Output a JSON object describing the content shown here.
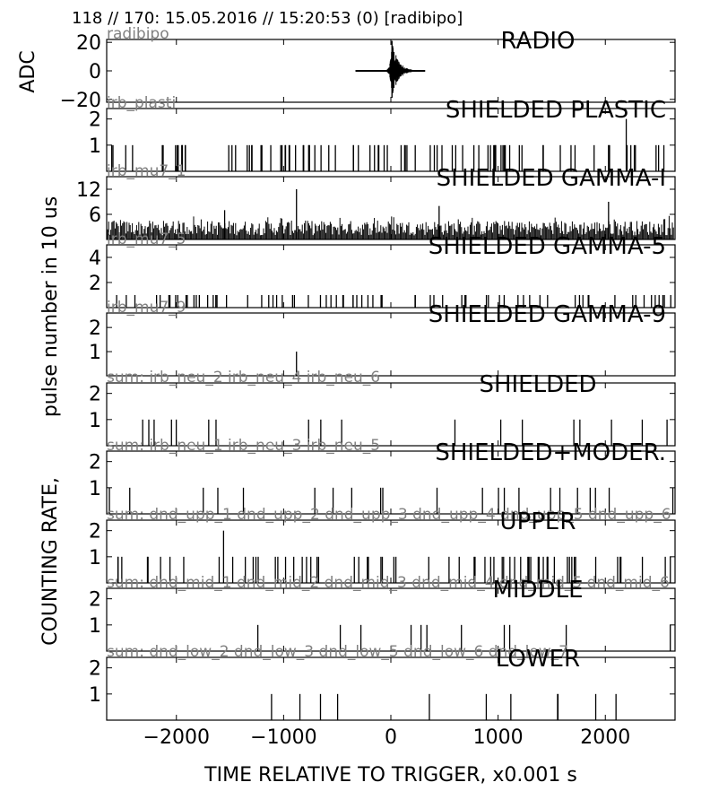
{
  "header": "118 // 170:   15.05.2016 // 15:20:53 (0)  [radibipo]",
  "chart_data": {
    "type": "bar",
    "xlabel": "TIME RELATIVE TO TRIGGER,   x0.001 s",
    "ylabel_top": "ADC",
    "ylabel_main_1": "COUNTING RATE,",
    "ylabel_main_2": "pulse number in 10 us",
    "xlim": [
      -2650,
      2650
    ],
    "xticks": [
      -2000,
      -1000,
      0,
      1000,
      2000
    ],
    "xticklabels": [
      "−2000",
      "−1000",
      "0",
      "1000",
      "2000"
    ],
    "panels": [
      {
        "title": "RADIO",
        "sublabel": "radibipo",
        "type": "waveform",
        "ylim": [
          -22,
          22
        ],
        "yticks": [
          20,
          0,
          -20
        ],
        "yticklabels": [
          "20",
          "0",
          "−20"
        ],
        "trace_range": [
          -330,
          320
        ],
        "burst_center": 10,
        "peak_abs": 21
      },
      {
        "title": "SHIELDED PLASTIC",
        "sublabel": "irb_plasti",
        "type": "pulses",
        "ylim": [
          0,
          2.4
        ],
        "yticks": [
          2,
          1
        ],
        "yticklabels": [
          "2",
          "1"
        ],
        "density": 0.42,
        "baseline": 1,
        "peaks": [
          {
            "x": 2195,
            "y": 2
          }
        ]
      },
      {
        "title": "SHIELDED GAMMA-I",
        "sublabel": "irb_mu7_1",
        "type": "dense",
        "ylim": [
          0,
          15
        ],
        "yticks": [
          12,
          6
        ],
        "yticklabels": [
          "12",
          "6"
        ],
        "base_max": 4.5,
        "peaks": [
          {
            "x": -880,
            "y": 12
          },
          {
            "x": 450,
            "y": 8
          },
          {
            "x": 2030,
            "y": 9
          },
          {
            "x": -1550,
            "y": 7
          }
        ]
      },
      {
        "title": "SHIELDED GAMMA-5",
        "sublabel": "irb_mu7_5",
        "type": "pulses",
        "ylim": [
          0,
          5
        ],
        "yticks": [
          4,
          2
        ],
        "yticklabels": [
          "4",
          "2"
        ],
        "density": 0.34,
        "baseline": 1,
        "peaks": []
      },
      {
        "title": "SHIELDED GAMMA-9",
        "sublabel": "irb_mu7_9",
        "type": "pulses",
        "ylim": [
          0,
          2.6
        ],
        "yticks": [
          2,
          1
        ],
        "yticklabels": [
          "2",
          "1"
        ],
        "density": 0.0,
        "baseline": 1,
        "peaks": [
          {
            "x": -880,
            "y": 1
          }
        ]
      },
      {
        "title": "SHIELDED",
        "sublabel": "sum: irb_neu_2 irb_neu_4 irb_neu_6",
        "type": "pulses",
        "ylim": [
          0,
          2.4
        ],
        "yticks": [
          2,
          1
        ],
        "yticklabels": [
          "2",
          "1"
        ],
        "density": 0.08,
        "baseline": 1,
        "peaks": []
      },
      {
        "title": "SHIELDED+MODER.",
        "sublabel": "sum: irb_neu_1 irb_neu_3 irb_neu_5",
        "type": "pulses",
        "ylim": [
          0,
          2.4
        ],
        "yticks": [
          2,
          1
        ],
        "yticklabels": [
          "2",
          "1"
        ],
        "density": 0.1,
        "baseline": 1,
        "peaks": []
      },
      {
        "title": "UPPER",
        "sublabel": "sum: dnd_upp_1 dnd_upp_2 dnd_upp_3 dnd_upp_4 dnd_upp_5 dnd_upp_6",
        "type": "pulses",
        "ylim": [
          0,
          2.4
        ],
        "yticks": [
          2,
          1
        ],
        "yticklabels": [
          "2",
          "1"
        ],
        "density": 0.3,
        "baseline": 1,
        "peaks": [
          {
            "x": -1560,
            "y": 2
          }
        ]
      },
      {
        "title": "MIDDLE",
        "sublabel": "sum: dnd_mid_1 dnd_mid_2 dnd_mid_3 dnd_mid_4 dnd_mid_5 dnd_mid_6",
        "type": "pulses",
        "ylim": [
          0,
          2.4
        ],
        "yticks": [
          2,
          1
        ],
        "yticklabels": [
          "2",
          "1"
        ],
        "density": 0.05,
        "baseline": 1,
        "peaks": []
      },
      {
        "title": "LOWER",
        "sublabel": "sum: dnd_low_2 dnd_low_3 dnd_low_5 dnd_low_6 dnd_low_7",
        "type": "pulses",
        "ylim": [
          0,
          2.4
        ],
        "yticks": [
          2,
          1
        ],
        "yticklabels": [
          "2",
          "1"
        ],
        "density": 0.05,
        "baseline": 1,
        "peaks": []
      }
    ]
  }
}
